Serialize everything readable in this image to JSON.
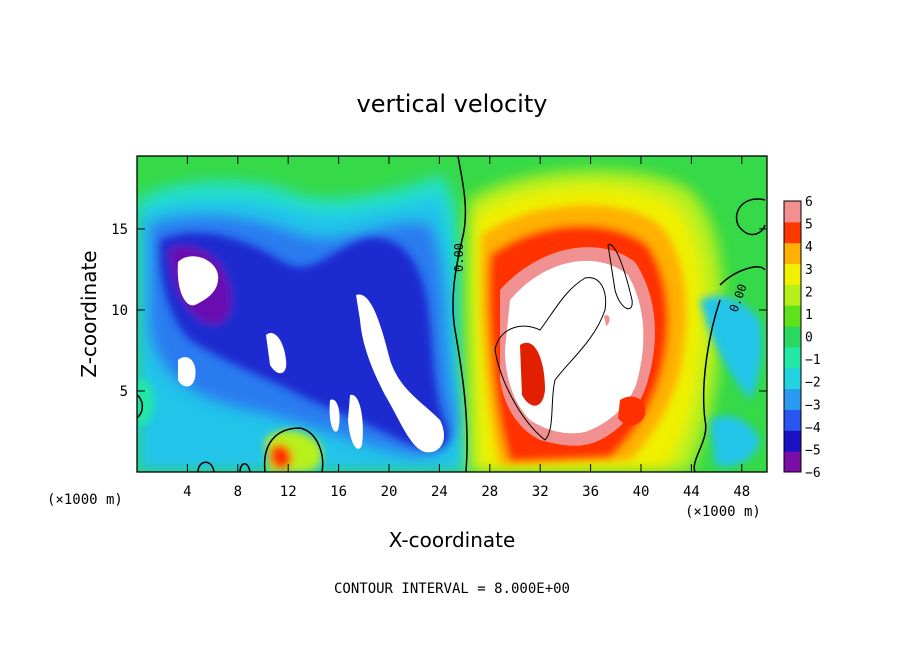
{
  "chart_data": {
    "type": "heatmap",
    "title": "vertical velocity",
    "xlabel": "X-coordinate",
    "ylabel": "Z-coordinate",
    "x_unit": "(×1000 m)",
    "z_unit": "(×1000 m)",
    "xlim": [
      0,
      50
    ],
    "ylim": [
      0,
      19.5
    ],
    "x_ticks": [
      4,
      8,
      12,
      16,
      20,
      24,
      28,
      32,
      36,
      40,
      44,
      48
    ],
    "z_ticks": [
      5,
      10,
      15
    ],
    "colorbar": {
      "levels": [
        6,
        5,
        4,
        3,
        2,
        1,
        0,
        -1,
        -2,
        -3,
        -4,
        -5,
        -6
      ],
      "range": [
        -6,
        6
      ],
      "colors": [
        "#7a0ea6",
        "#1a10c4",
        "#2a55f0",
        "#2a9af0",
        "#22d4e0",
        "#22e8a6",
        "#2ad860",
        "#5ee21a",
        "#b4f01a",
        "#f0f000",
        "#ffb000",
        "#ff3800",
        "#f09090"
      ]
    },
    "contours": [
      {
        "label": "0.00",
        "x": 25,
        "z": 13
      },
      {
        "label": "0.00",
        "x": 47,
        "z": 11
      }
    ],
    "features": [
      {
        "kind": "downdraft",
        "x_range": [
          2,
          26
        ],
        "z_range": [
          1,
          17
        ],
        "min_value": -6
      },
      {
        "kind": "updraft",
        "x_range": [
          27,
          44
        ],
        "z_range": [
          0.5,
          17.5
        ],
        "max_value": 6
      }
    ],
    "note": "CONTOUR INTERVAL = 8.000E+00"
  },
  "palette": {
    "white": "#ffffff",
    "background_field": "#33d94a",
    "contour_line": "#000000"
  }
}
